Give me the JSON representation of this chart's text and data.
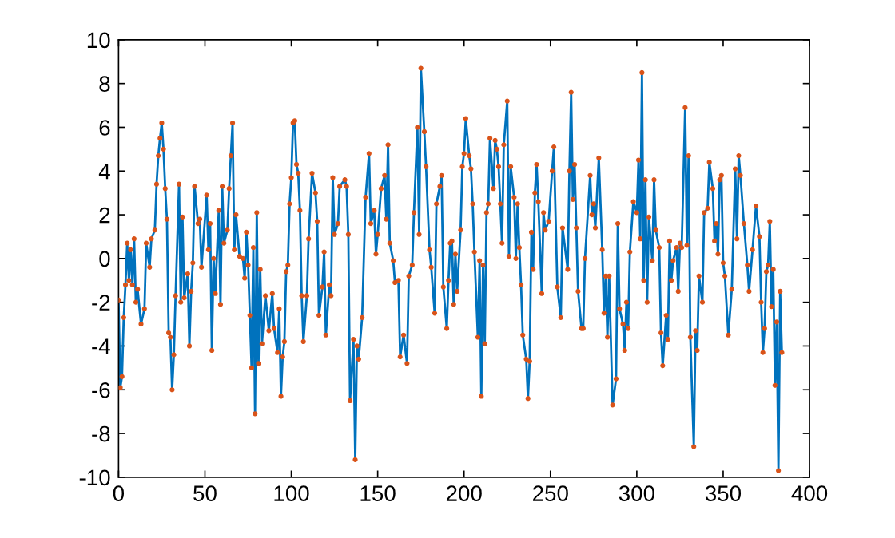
{
  "chart_data": {
    "type": "line",
    "x": [
      0,
      1,
      2,
      3,
      4,
      5,
      6,
      7,
      8,
      9,
      10,
      11,
      13,
      15,
      16,
      18,
      19,
      21,
      22,
      23,
      24,
      25,
      26,
      27,
      28,
      29,
      30,
      31,
      32,
      33,
      35,
      36,
      37,
      38,
      40,
      41,
      42,
      43,
      44,
      46,
      47,
      48,
      51,
      52,
      53,
      54,
      55,
      56,
      58,
      59,
      60,
      61,
      63,
      64,
      65,
      66,
      67,
      68,
      70,
      72,
      73,
      74,
      75,
      76,
      77,
      78,
      79,
      80,
      81,
      82,
      83,
      85,
      87,
      89,
      90,
      92,
      93,
      94,
      95,
      96,
      97,
      98,
      99,
      100,
      101,
      102,
      103,
      104,
      105,
      106,
      107,
      109,
      110,
      112,
      114,
      115,
      116,
      118,
      119,
      120,
      122,
      123,
      124,
      125,
      127,
      128,
      131,
      132,
      133,
      134,
      136,
      137,
      138,
      139,
      141,
      143,
      145,
      146,
      148,
      149,
      150,
      152,
      154,
      155,
      156,
      157,
      159,
      160,
      162,
      163,
      165,
      167,
      168,
      170,
      171,
      173,
      174,
      175,
      177,
      178,
      180,
      181,
      183,
      184,
      186,
      187,
      188,
      190,
      191,
      192,
      193,
      194,
      195,
      196,
      198,
      199,
      200,
      201,
      203,
      204,
      205,
      206,
      208,
      209,
      210,
      211,
      212,
      213,
      214,
      215,
      217,
      218,
      219,
      220,
      221,
      222,
      223,
      225,
      226,
      227,
      229,
      230,
      231,
      232,
      233,
      234,
      236,
      237,
      238,
      239,
      240,
      241,
      242,
      243,
      245,
      246,
      247,
      249,
      251,
      252,
      254,
      256,
      257,
      260,
      261,
      262,
      263,
      264,
      265,
      266,
      268,
      269,
      270,
      273,
      274,
      275,
      276,
      278,
      280,
      281,
      282,
      283,
      284,
      286,
      288,
      289,
      290,
      292,
      293,
      294,
      295,
      296,
      298,
      300,
      301,
      302,
      303,
      304,
      305,
      306,
      307,
      309,
      310,
      311,
      313,
      314,
      315,
      317,
      318,
      319,
      320,
      321,
      323,
      324,
      325,
      326,
      328,
      329,
      330,
      331,
      333,
      334,
      335,
      336,
      338,
      339,
      341,
      342,
      344,
      345,
      346,
      347,
      348,
      349,
      350,
      351,
      353,
      355,
      357,
      358,
      359,
      360,
      362,
      364,
      365,
      367,
      369,
      371,
      372,
      373,
      374,
      375,
      376,
      377,
      378,
      379,
      380,
      381,
      382,
      383,
      384
    ],
    "series": [
      {
        "color": "#0072bd",
        "marker": "none",
        "values": [
          -1.9,
          -5.9,
          -5.4,
          -2.7,
          -1.2,
          0.7,
          -1.0,
          0.4,
          -1.2,
          0.9,
          -2.0,
          -1.4,
          -3.0,
          -2.3,
          0.7,
          -0.4,
          0.9,
          1.3,
          3.4,
          4.7,
          5.5,
          6.2,
          5.0,
          3.2,
          1.8,
          -3.4,
          -3.6,
          -6.0,
          -4.4,
          -1.7,
          3.4,
          -2.0,
          1.9,
          -1.8,
          -0.7,
          -4.0,
          -1.5,
          -0.2,
          3.3,
          1.6,
          1.8,
          -0.4,
          2.9,
          0.4,
          1.6,
          -4.2,
          0.0,
          -1.6,
          2.2,
          -2.1,
          3.3,
          0.7,
          1.3,
          3.2,
          4.7,
          6.2,
          0.4,
          2.0,
          0.1,
          0.0,
          -0.9,
          1.2,
          -0.3,
          -2.6,
          -5.0,
          0.5,
          -7.1,
          2.1,
          -4.8,
          -0.5,
          -3.9,
          -1.7,
          -3.3,
          -1.6,
          -3.2,
          -4.3,
          -2.3,
          -6.3,
          -4.5,
          -3.8,
          -0.6,
          -0.3,
          2.5,
          3.7,
          6.2,
          6.3,
          4.3,
          3.9,
          2.2,
          -1.7,
          -3.8,
          -1.7,
          0.9,
          3.9,
          3.0,
          1.7,
          -2.6,
          -1.3,
          0.3,
          -3.5,
          -1.2,
          -1.7,
          3.7,
          1.1,
          1.6,
          3.3,
          3.6,
          3.3,
          1.1,
          -6.5,
          -3.7,
          -9.2,
          -4.0,
          -4.6,
          -2.7,
          2.8,
          4.8,
          1.6,
          2.2,
          0.2,
          1.1,
          3.2,
          3.8,
          1.8,
          5.2,
          0.7,
          -0.1,
          -1.1,
          -1.0,
          -4.5,
          -3.5,
          -4.8,
          -0.8,
          -0.3,
          2.1,
          6.0,
          1.1,
          8.7,
          5.8,
          4.2,
          0.4,
          -0.4,
          -2.5,
          2.5,
          3.3,
          3.8,
          -1.3,
          -3.2,
          -1.0,
          0.7,
          0.8,
          -2.1,
          0.2,
          -1.5,
          1.3,
          4.2,
          4.8,
          6.4,
          4.7,
          4.1,
          2.5,
          0.3,
          -3.6,
          -0.1,
          -6.3,
          -0.3,
          -3.9,
          2.1,
          2.5,
          5.5,
          3.2,
          5.4,
          5.0,
          4.2,
          2.5,
          0.7,
          5.2,
          7.2,
          0.1,
          4.2,
          2.8,
          0.0,
          2.5,
          0.5,
          -1.2,
          -3.5,
          -4.6,
          -6.4,
          -4.7,
          1.2,
          -0.5,
          3.0,
          4.3,
          2.6,
          -1.6,
          2.1,
          1.3,
          1.7,
          4.0,
          5.1,
          -1.3,
          -2.7,
          1.4,
          -0.5,
          4.0,
          7.6,
          2.7,
          4.3,
          1.4,
          -1.5,
          -3.2,
          -3.2,
          0.0,
          3.8,
          2.0,
          2.5,
          1.4,
          4.6,
          0.4,
          -2.5,
          -0.8,
          -3.6,
          -0.8,
          -6.7,
          -5.5,
          1.6,
          -2.3,
          -3.0,
          -4.2,
          -2.0,
          -3.2,
          0.3,
          2.6,
          2.1,
          4.5,
          0.9,
          8.5,
          -1.0,
          3.6,
          -2.0,
          1.9,
          -0.1,
          3.6,
          1.3,
          0.5,
          -3.4,
          -4.9,
          -2.6,
          -3.7,
          0.8,
          -1.0,
          -0.1,
          0.5,
          -1.5,
          0.7,
          0.5,
          6.9,
          0.6,
          4.7,
          -3.6,
          -8.6,
          -3.3,
          -4.2,
          -0.8,
          -2.0,
          2.1,
          2.3,
          4.4,
          3.2,
          0.8,
          1.6,
          0.2,
          3.6,
          3.8,
          -0.2,
          -0.8,
          -3.5,
          -1.4,
          4.1,
          0.9,
          4.7,
          3.8,
          1.6,
          -0.3,
          -1.5,
          0.4,
          2.4,
          1.0,
          -2.0,
          -4.3,
          -3.2,
          -0.6,
          -0.3,
          1.7,
          -2.2,
          -0.5,
          -5.8,
          -2.9,
          -9.7,
          -1.5,
          -4.3
        ]
      },
      {
        "type": "scatter",
        "color": "#d95319",
        "marker": "circle",
        "values": [
          -1.9,
          -5.9,
          -5.4,
          -2.7,
          -1.2,
          0.7,
          -1.0,
          0.4,
          -1.2,
          0.9,
          -2.0,
          -1.4,
          -3.0,
          -2.3,
          0.7,
          -0.4,
          0.9,
          1.3,
          3.4,
          4.7,
          5.5,
          6.2,
          5.0,
          3.2,
          1.8,
          -3.4,
          -3.6,
          -6.0,
          -4.4,
          -1.7,
          3.4,
          -2.0,
          1.9,
          -1.8,
          -0.7,
          -4.0,
          -1.5,
          -0.2,
          3.3,
          1.6,
          1.8,
          -0.4,
          2.9,
          0.4,
          1.6,
          -4.2,
          0.0,
          -1.6,
          2.2,
          -2.1,
          3.3,
          0.7,
          1.3,
          3.2,
          4.7,
          6.2,
          0.4,
          2.0,
          0.1,
          0.0,
          -0.9,
          1.2,
          -0.3,
          -2.6,
          -5.0,
          0.5,
          -7.1,
          2.1,
          -4.8,
          -0.5,
          -3.9,
          -1.7,
          -3.3,
          -1.6,
          -3.2,
          -4.3,
          -2.3,
          -6.3,
          -4.5,
          -3.8,
          -0.6,
          -0.3,
          2.5,
          3.7,
          6.2,
          6.3,
          4.3,
          3.9,
          2.2,
          -1.7,
          -3.8,
          -1.7,
          0.9,
          3.9,
          3.0,
          1.7,
          -2.6,
          -1.3,
          0.3,
          -3.5,
          -1.2,
          -1.7,
          3.7,
          1.1,
          1.6,
          3.3,
          3.6,
          3.3,
          1.1,
          -6.5,
          -3.7,
          -9.2,
          -4.0,
          -4.6,
          -2.7,
          2.8,
          4.8,
          1.6,
          2.2,
          0.2,
          1.1,
          3.2,
          3.8,
          1.8,
          5.2,
          0.7,
          -0.1,
          -1.1,
          -1.0,
          -4.5,
          -3.5,
          -4.8,
          -0.8,
          -0.3,
          2.1,
          6.0,
          1.1,
          8.7,
          5.8,
          4.2,
          0.4,
          -0.4,
          -2.5,
          2.5,
          3.3,
          3.8,
          -1.3,
          -3.2,
          -1.0,
          0.7,
          0.8,
          -2.1,
          0.2,
          -1.5,
          1.3,
          4.2,
          4.8,
          6.4,
          4.7,
          4.1,
          2.5,
          0.3,
          -3.6,
          -0.1,
          -6.3,
          -0.3,
          -3.9,
          2.1,
          2.5,
          5.5,
          3.2,
          5.4,
          5.0,
          4.2,
          2.5,
          0.7,
          5.2,
          7.2,
          0.1,
          4.2,
          2.8,
          0.0,
          2.5,
          0.5,
          -1.2,
          -3.5,
          -4.6,
          -6.4,
          -4.7,
          1.2,
          -0.5,
          3.0,
          4.3,
          2.6,
          -1.6,
          2.1,
          1.3,
          1.7,
          4.0,
          5.1,
          -1.3,
          -2.7,
          1.4,
          -0.5,
          4.0,
          7.6,
          2.7,
          4.3,
          1.4,
          -1.5,
          -3.2,
          -3.2,
          0.0,
          3.8,
          2.0,
          2.5,
          1.4,
          4.6,
          0.4,
          -2.5,
          -0.8,
          -3.6,
          -0.8,
          -6.7,
          -5.5,
          1.6,
          -2.3,
          -3.0,
          -4.2,
          -2.0,
          -3.2,
          0.3,
          2.6,
          2.1,
          4.5,
          0.9,
          8.5,
          -1.0,
          3.6,
          -2.0,
          1.9,
          -0.1,
          3.6,
          1.3,
          0.5,
          -3.4,
          -4.9,
          -2.6,
          -3.7,
          0.8,
          -1.0,
          -0.1,
          0.5,
          -1.5,
          0.7,
          0.5,
          6.9,
          0.6,
          4.7,
          -3.6,
          -8.6,
          -3.3,
          -4.2,
          -0.8,
          -2.0,
          2.1,
          2.3,
          4.4,
          3.2,
          0.8,
          1.6,
          0.2,
          3.6,
          3.8,
          -0.2,
          -0.8,
          -3.5,
          -1.4,
          4.1,
          0.9,
          4.7,
          3.8,
          1.6,
          -0.3,
          -1.5,
          0.4,
          2.4,
          1.0,
          -2.0,
          -4.3,
          -3.2,
          -0.6,
          -0.3,
          1.7,
          -2.2,
          -0.5,
          -5.8,
          -2.9,
          -9.7,
          -1.5,
          -4.3
        ]
      }
    ],
    "xlim": [
      0,
      400
    ],
    "xticks": [
      0,
      50,
      100,
      150,
      200,
      250,
      300,
      350,
      400
    ],
    "ylim": [
      -10,
      10
    ],
    "yticks": [
      -10,
      -8,
      -6,
      -4,
      -2,
      0,
      2,
      4,
      6,
      8,
      10
    ],
    "grid": false,
    "legend": false
  }
}
